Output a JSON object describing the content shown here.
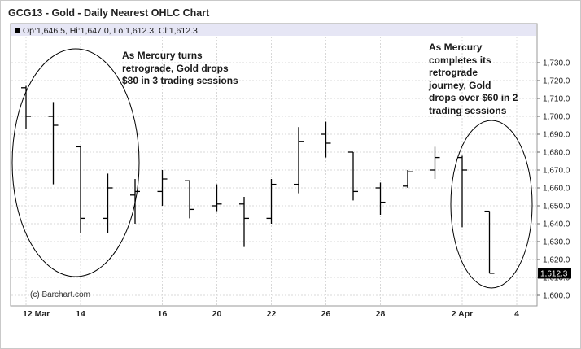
{
  "title": "GCG13 - Gold - Daily Nearest OHLC Chart",
  "ohlc_readout": "Op:1,646.5, Hi:1,647.0, Lo:1,612.3, Cl:1,612.3",
  "watermark": "(c) Barchart.com",
  "last_price_label": "1,612.3",
  "annotations": [
    "As Mercury turns\nretrograde, Gold drops\n$80 in 3 trading sessions",
    "As Mercury\ncompletes its\nretrograde\njourney, Gold\ndrops over $60 in 2\ntrading sessions"
  ],
  "chart_data": {
    "type": "ohlc",
    "title": "GCG13 - Gold - Daily Nearest OHLC Chart",
    "ylim": [
      1600,
      1735
    ],
    "y_ticks": [
      "1,600.0",
      "1,610.0",
      "1,620.0",
      "1,630.0",
      "1,640.0",
      "1,650.0",
      "1,660.0",
      "1,670.0",
      "1,680.0",
      "1,690.0",
      "1,700.0",
      "1,710.0",
      "1,720.0",
      "1,730.0"
    ],
    "y_tick_values": [
      1600,
      1610,
      1620,
      1630,
      1640,
      1650,
      1660,
      1670,
      1680,
      1690,
      1700,
      1710,
      1720,
      1730
    ],
    "x_tick_labels": [
      "12 Mar",
      "14",
      "16",
      "20",
      "22",
      "26",
      "28",
      "2 Apr",
      "4"
    ],
    "x_tick_session_index": [
      0,
      2,
      5,
      7,
      9,
      11,
      13,
      16,
      18
    ],
    "sessions": [
      {
        "o": 1716,
        "h": 1717,
        "l": 1693,
        "c": 1700
      },
      {
        "o": 1700,
        "h": 1708,
        "l": 1662,
        "c": 1695
      },
      {
        "o": 1683,
        "h": 1683,
        "l": 1635,
        "c": 1643
      },
      {
        "o": 1643,
        "h": 1668,
        "l": 1635,
        "c": 1660
      },
      {
        "o": 1656,
        "h": 1665,
        "l": 1640,
        "c": 1658
      },
      {
        "o": 1658,
        "h": 1670,
        "l": 1650,
        "c": 1665
      },
      {
        "o": 1664,
        "h": 1664,
        "l": 1643,
        "c": 1648
      },
      {
        "o": 1650,
        "h": 1662,
        "l": 1647,
        "c": 1651
      },
      {
        "o": 1651,
        "h": 1655,
        "l": 1627,
        "c": 1643
      },
      {
        "o": 1643,
        "h": 1665,
        "l": 1640,
        "c": 1662
      },
      {
        "o": 1662,
        "h": 1694,
        "l": 1657,
        "c": 1686
      },
      {
        "o": 1690,
        "h": 1697,
        "l": 1677,
        "c": 1685
      },
      {
        "o": 1680,
        "h": 1680,
        "l": 1653,
        "c": 1658
      },
      {
        "o": 1660,
        "h": 1663,
        "l": 1645,
        "c": 1652
      },
      {
        "o": 1661,
        "h": 1670,
        "l": 1660,
        "c": 1669
      },
      {
        "o": 1670,
        "h": 1683,
        "l": 1665,
        "c": 1677
      },
      {
        "o": 1677,
        "h": 1678,
        "l": 1638,
        "c": 1670
      },
      {
        "o": 1647,
        "h": 1647,
        "l": 1612.3,
        "c": 1612.3
      }
    ]
  },
  "colors": {
    "plot_bg": "#ffffff",
    "header_band": "#e6e6f5",
    "grid": "#d8d8d8",
    "bar": "#000000",
    "last_label_bg": "#000000",
    "last_label_fg": "#ffffff"
  }
}
